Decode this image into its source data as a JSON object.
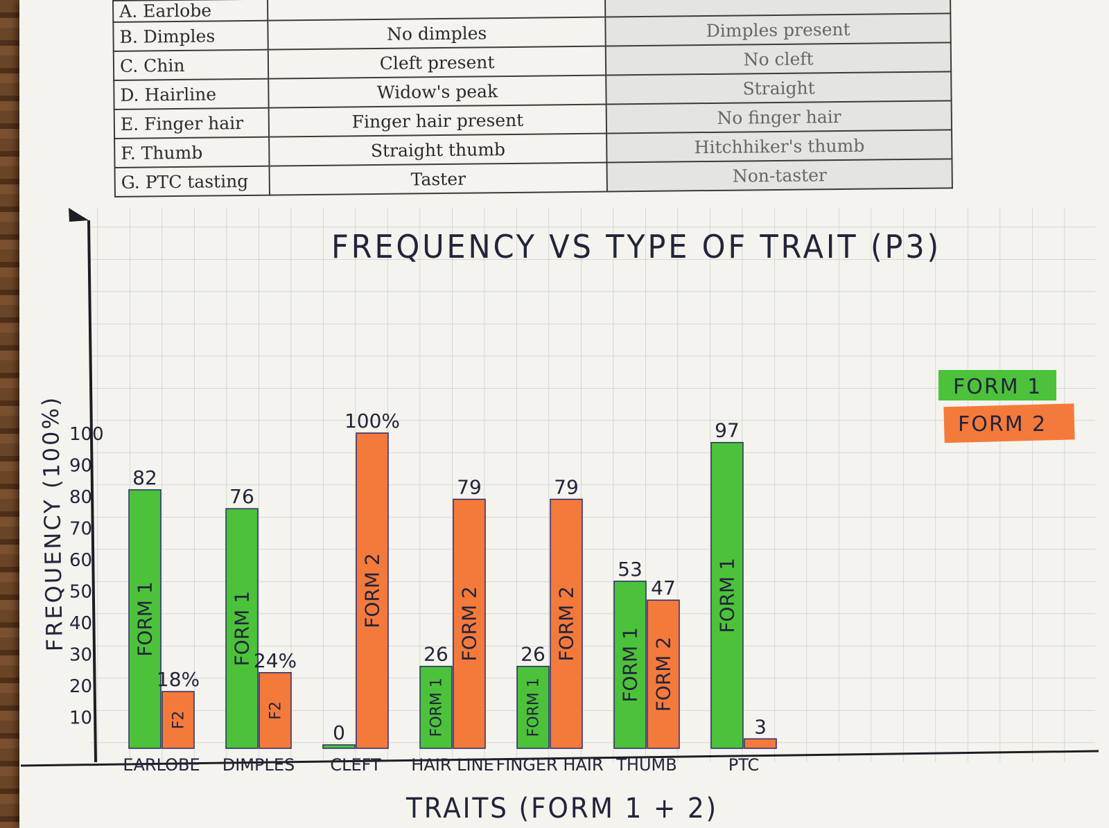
{
  "worksheet": {
    "rows": [
      {
        "trait": "A. Earlobe",
        "form1": "",
        "form2": ""
      },
      {
        "trait": "B. Dimples",
        "form1": "No dimples",
        "form2": "Dimples present"
      },
      {
        "trait": "C. Chin",
        "form1": "Cleft present",
        "form2": "No cleft"
      },
      {
        "trait": "D. Hairline",
        "form1": "Widow's peak",
        "form2": "Straight"
      },
      {
        "trait": "E. Finger hair",
        "form1": "Finger hair present",
        "form2": "No finger hair"
      },
      {
        "trait": "F. Thumb",
        "form1": "Straight thumb",
        "form2": "Hitchhiker's thumb"
      },
      {
        "trait": "G. PTC tasting",
        "form1": "Taster",
        "form2": "Non-taster"
      }
    ]
  },
  "chart_data": {
    "type": "bar",
    "title": "FREQUENCY VS TYPE OF TRAIT (P3)",
    "xlabel": "TRAITS (FORM 1 + 2)",
    "ylabel": "FREQUENCY (100%)",
    "ylim": [
      0,
      100
    ],
    "yticks": [
      "10",
      "20",
      "30",
      "40",
      "50",
      "60",
      "70",
      "80",
      "90",
      "100"
    ],
    "categories": [
      "EARLOBE",
      "DIMPLES",
      "CLEFT",
      "HAIR LINE",
      "FINGER HAIR",
      "THUMB",
      "PTC"
    ],
    "series": [
      {
        "name": "FORM 1",
        "color": "#4cc23a",
        "values": [
          82,
          76,
          0,
          26,
          26,
          53,
          97
        ],
        "value_labels": [
          "82",
          "76",
          "0",
          "26",
          "26",
          "53",
          "97"
        ],
        "bar_labels": [
          "FORM 1",
          "FORM 1",
          "",
          "FORM 1",
          "FORM 1",
          "FORM 1",
          "FORM 1"
        ]
      },
      {
        "name": "FORM 2",
        "color": "#f47a3c",
        "values": [
          18,
          24,
          100,
          79,
          79,
          47,
          3
        ],
        "value_labels": [
          "18%",
          "24%",
          "100%",
          "79",
          "79",
          "47",
          "3"
        ],
        "bar_labels": [
          "F2",
          "F2",
          "FORM 2",
          "FORM 2",
          "FORM 2",
          "FORM 2",
          ""
        ]
      }
    ],
    "grid": true,
    "legend": "right"
  }
}
